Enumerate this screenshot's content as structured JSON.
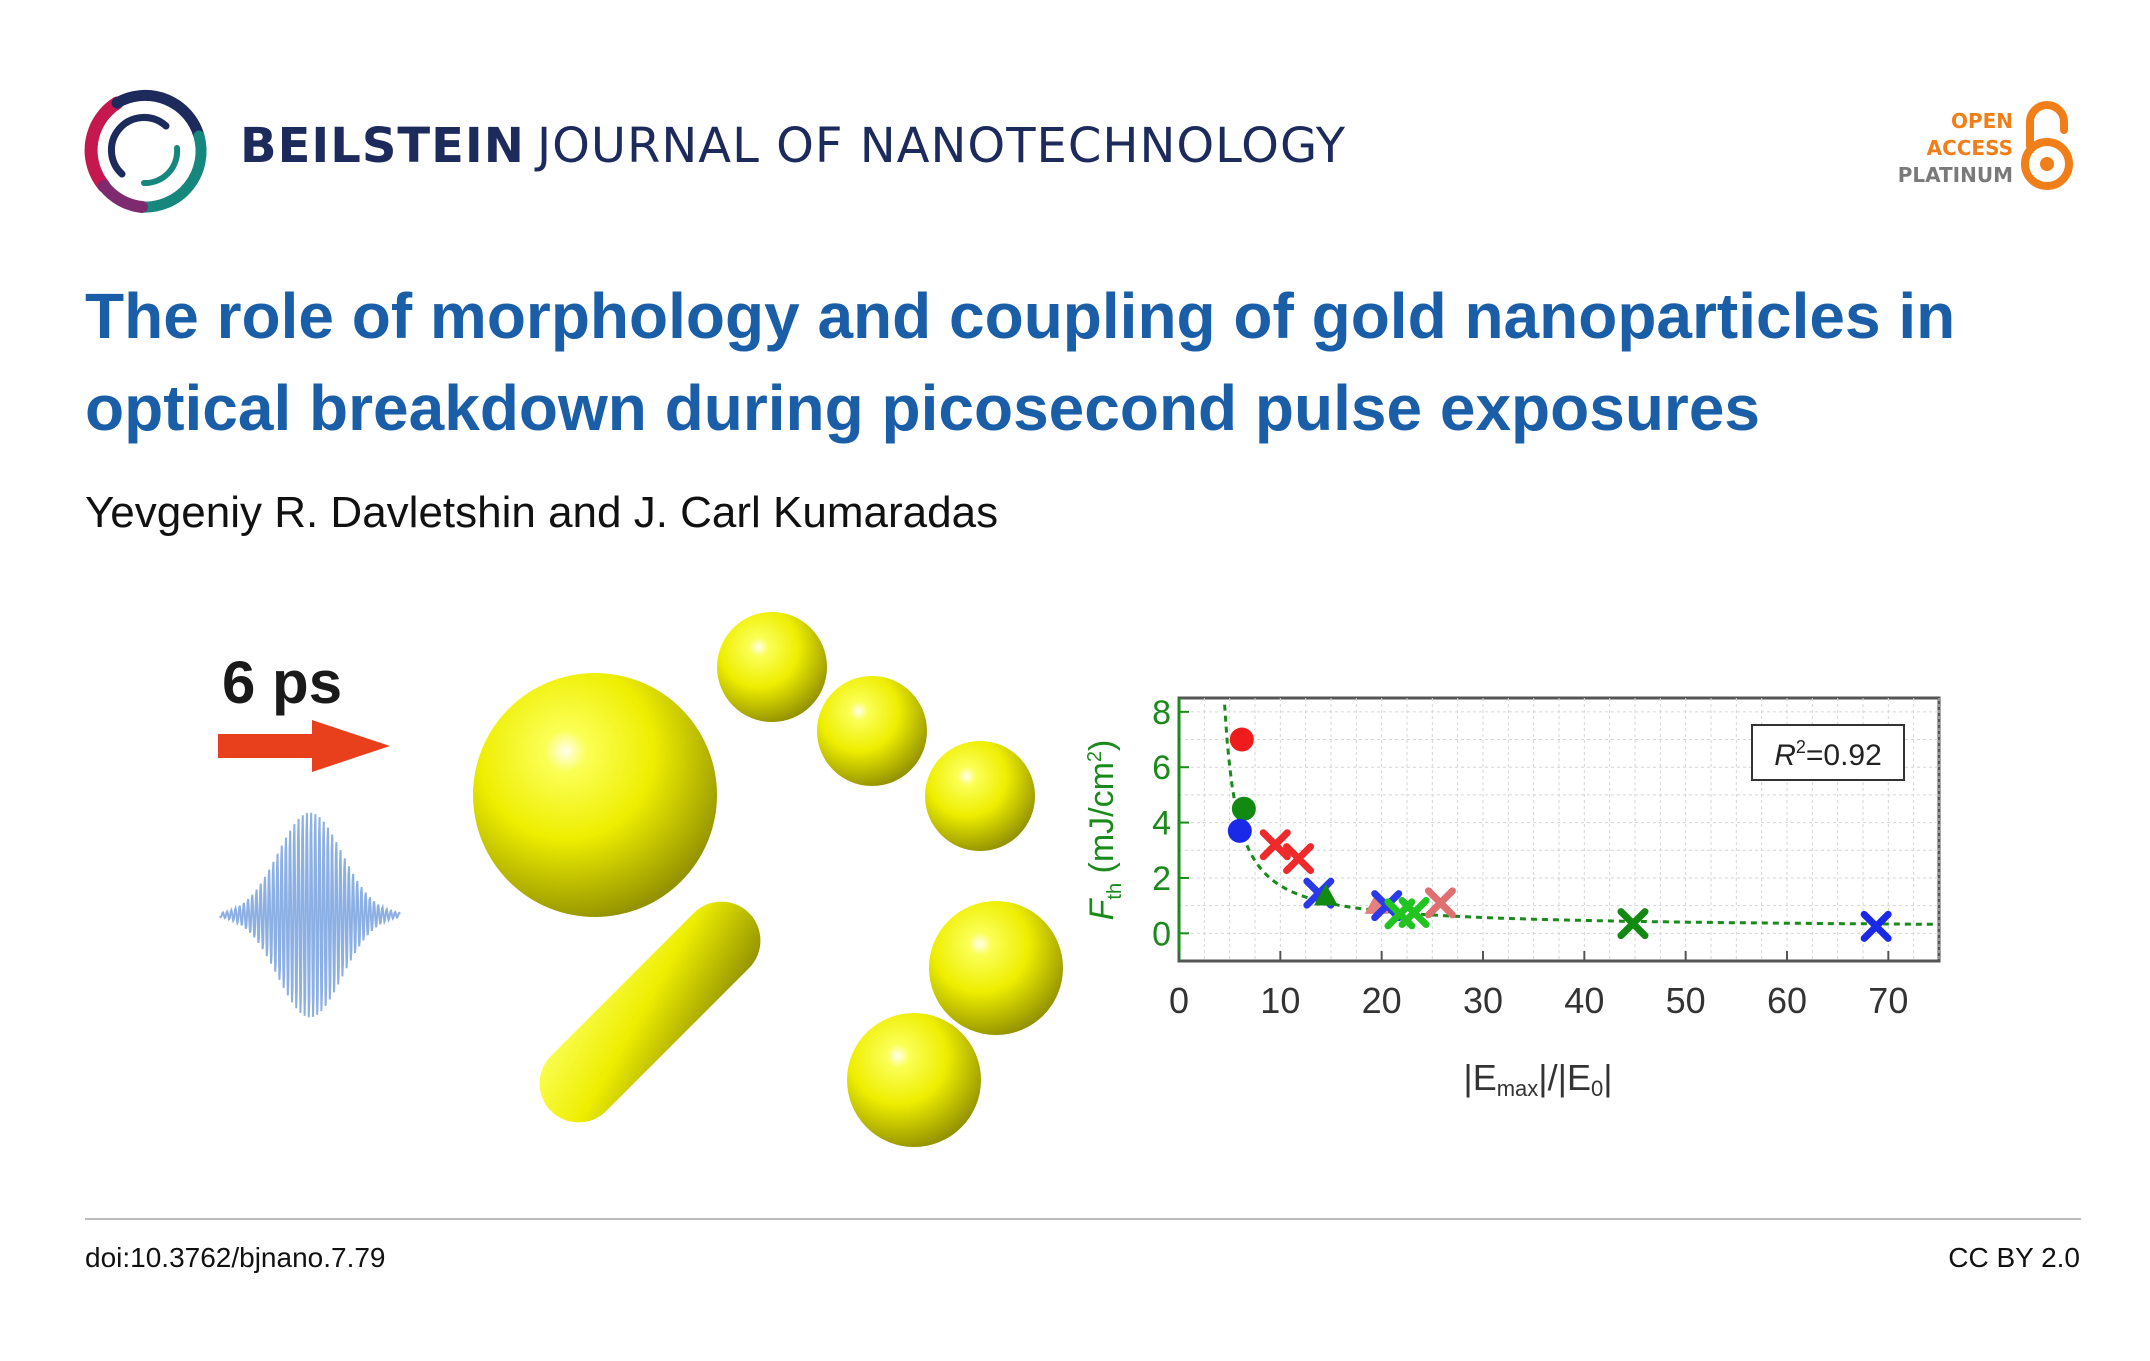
{
  "header": {
    "journal_bold": "BEILSTEIN",
    "journal_light": "JOURNAL OF NANOTECHNOLOGY",
    "open_access": {
      "line1": "OPEN",
      "line2": "ACCESS",
      "line3": "PLATINUM"
    }
  },
  "article": {
    "title": "The role of morphology and coupling of gold nanoparticles in optical breakdown during picosecond pulse exposures",
    "authors": "Yevgeniy R. Davletshin and J. Carl Kumaradas"
  },
  "graphic": {
    "pulse_label": "6 ps"
  },
  "chart_data": {
    "type": "scatter",
    "xlabel_parts": [
      "|E",
      "max",
      "|/|E",
      "0",
      "|"
    ],
    "ylabel_parts": [
      "F",
      "th",
      " (mJ/cm",
      "2",
      ")"
    ],
    "xlim": [
      0,
      75
    ],
    "ylim": [
      -1,
      8.5
    ],
    "xticks": [
      0,
      10,
      20,
      30,
      40,
      50,
      60,
      70
    ],
    "yticks": [
      0,
      2,
      4,
      6,
      8
    ],
    "grid": true,
    "annotation": {
      "label_parts": [
        "R",
        "2",
        "=0.92"
      ],
      "position": "top-right"
    },
    "fit_curve": {
      "style": "dashed",
      "color": "#1a8a1a"
    },
    "points": [
      {
        "x": 6.2,
        "y": 7.0,
        "marker": "circle",
        "color": "#ee1c1c"
      },
      {
        "x": 6.4,
        "y": 4.5,
        "marker": "circle",
        "color": "#128a12"
      },
      {
        "x": 6.0,
        "y": 3.7,
        "marker": "circle",
        "color": "#1a28e8"
      },
      {
        "x": 9.5,
        "y": 3.2,
        "marker": "x",
        "color": "#ee2a2a"
      },
      {
        "x": 11.8,
        "y": 2.7,
        "marker": "x",
        "color": "#ee2a2a"
      },
      {
        "x": 13.8,
        "y": 1.45,
        "marker": "x",
        "color": "#2a3ae8"
      },
      {
        "x": 14.5,
        "y": 1.35,
        "marker": "triangle",
        "color": "#128a12"
      },
      {
        "x": 19.5,
        "y": 1.05,
        "marker": "triangle",
        "color": "#e48080"
      },
      {
        "x": 20.5,
        "y": 1.0,
        "marker": "x",
        "color": "#2a3ae8"
      },
      {
        "x": 21.8,
        "y": 0.7,
        "marker": "x",
        "color": "#21c421"
      },
      {
        "x": 23.2,
        "y": 0.75,
        "marker": "x",
        "color": "#21c421"
      },
      {
        "x": 25.8,
        "y": 1.1,
        "marker": "x",
        "color": "#e07070"
      },
      {
        "x": 44.8,
        "y": 0.35,
        "marker": "x",
        "color": "#128a12"
      },
      {
        "x": 68.8,
        "y": 0.25,
        "marker": "x",
        "color": "#1a28e8"
      }
    ]
  },
  "footer": {
    "doi": "doi:10.3762/bjnano.7.79",
    "license": "CC BY 2.0"
  },
  "colors": {
    "title_blue": "#1a5ea8",
    "journal_navy": "#1c2a5c",
    "oa_orange": "#f07f1a",
    "gold_yellow": "#f4f000",
    "arrow_red": "#e8401c",
    "chart_green": "#1a8a1a"
  }
}
